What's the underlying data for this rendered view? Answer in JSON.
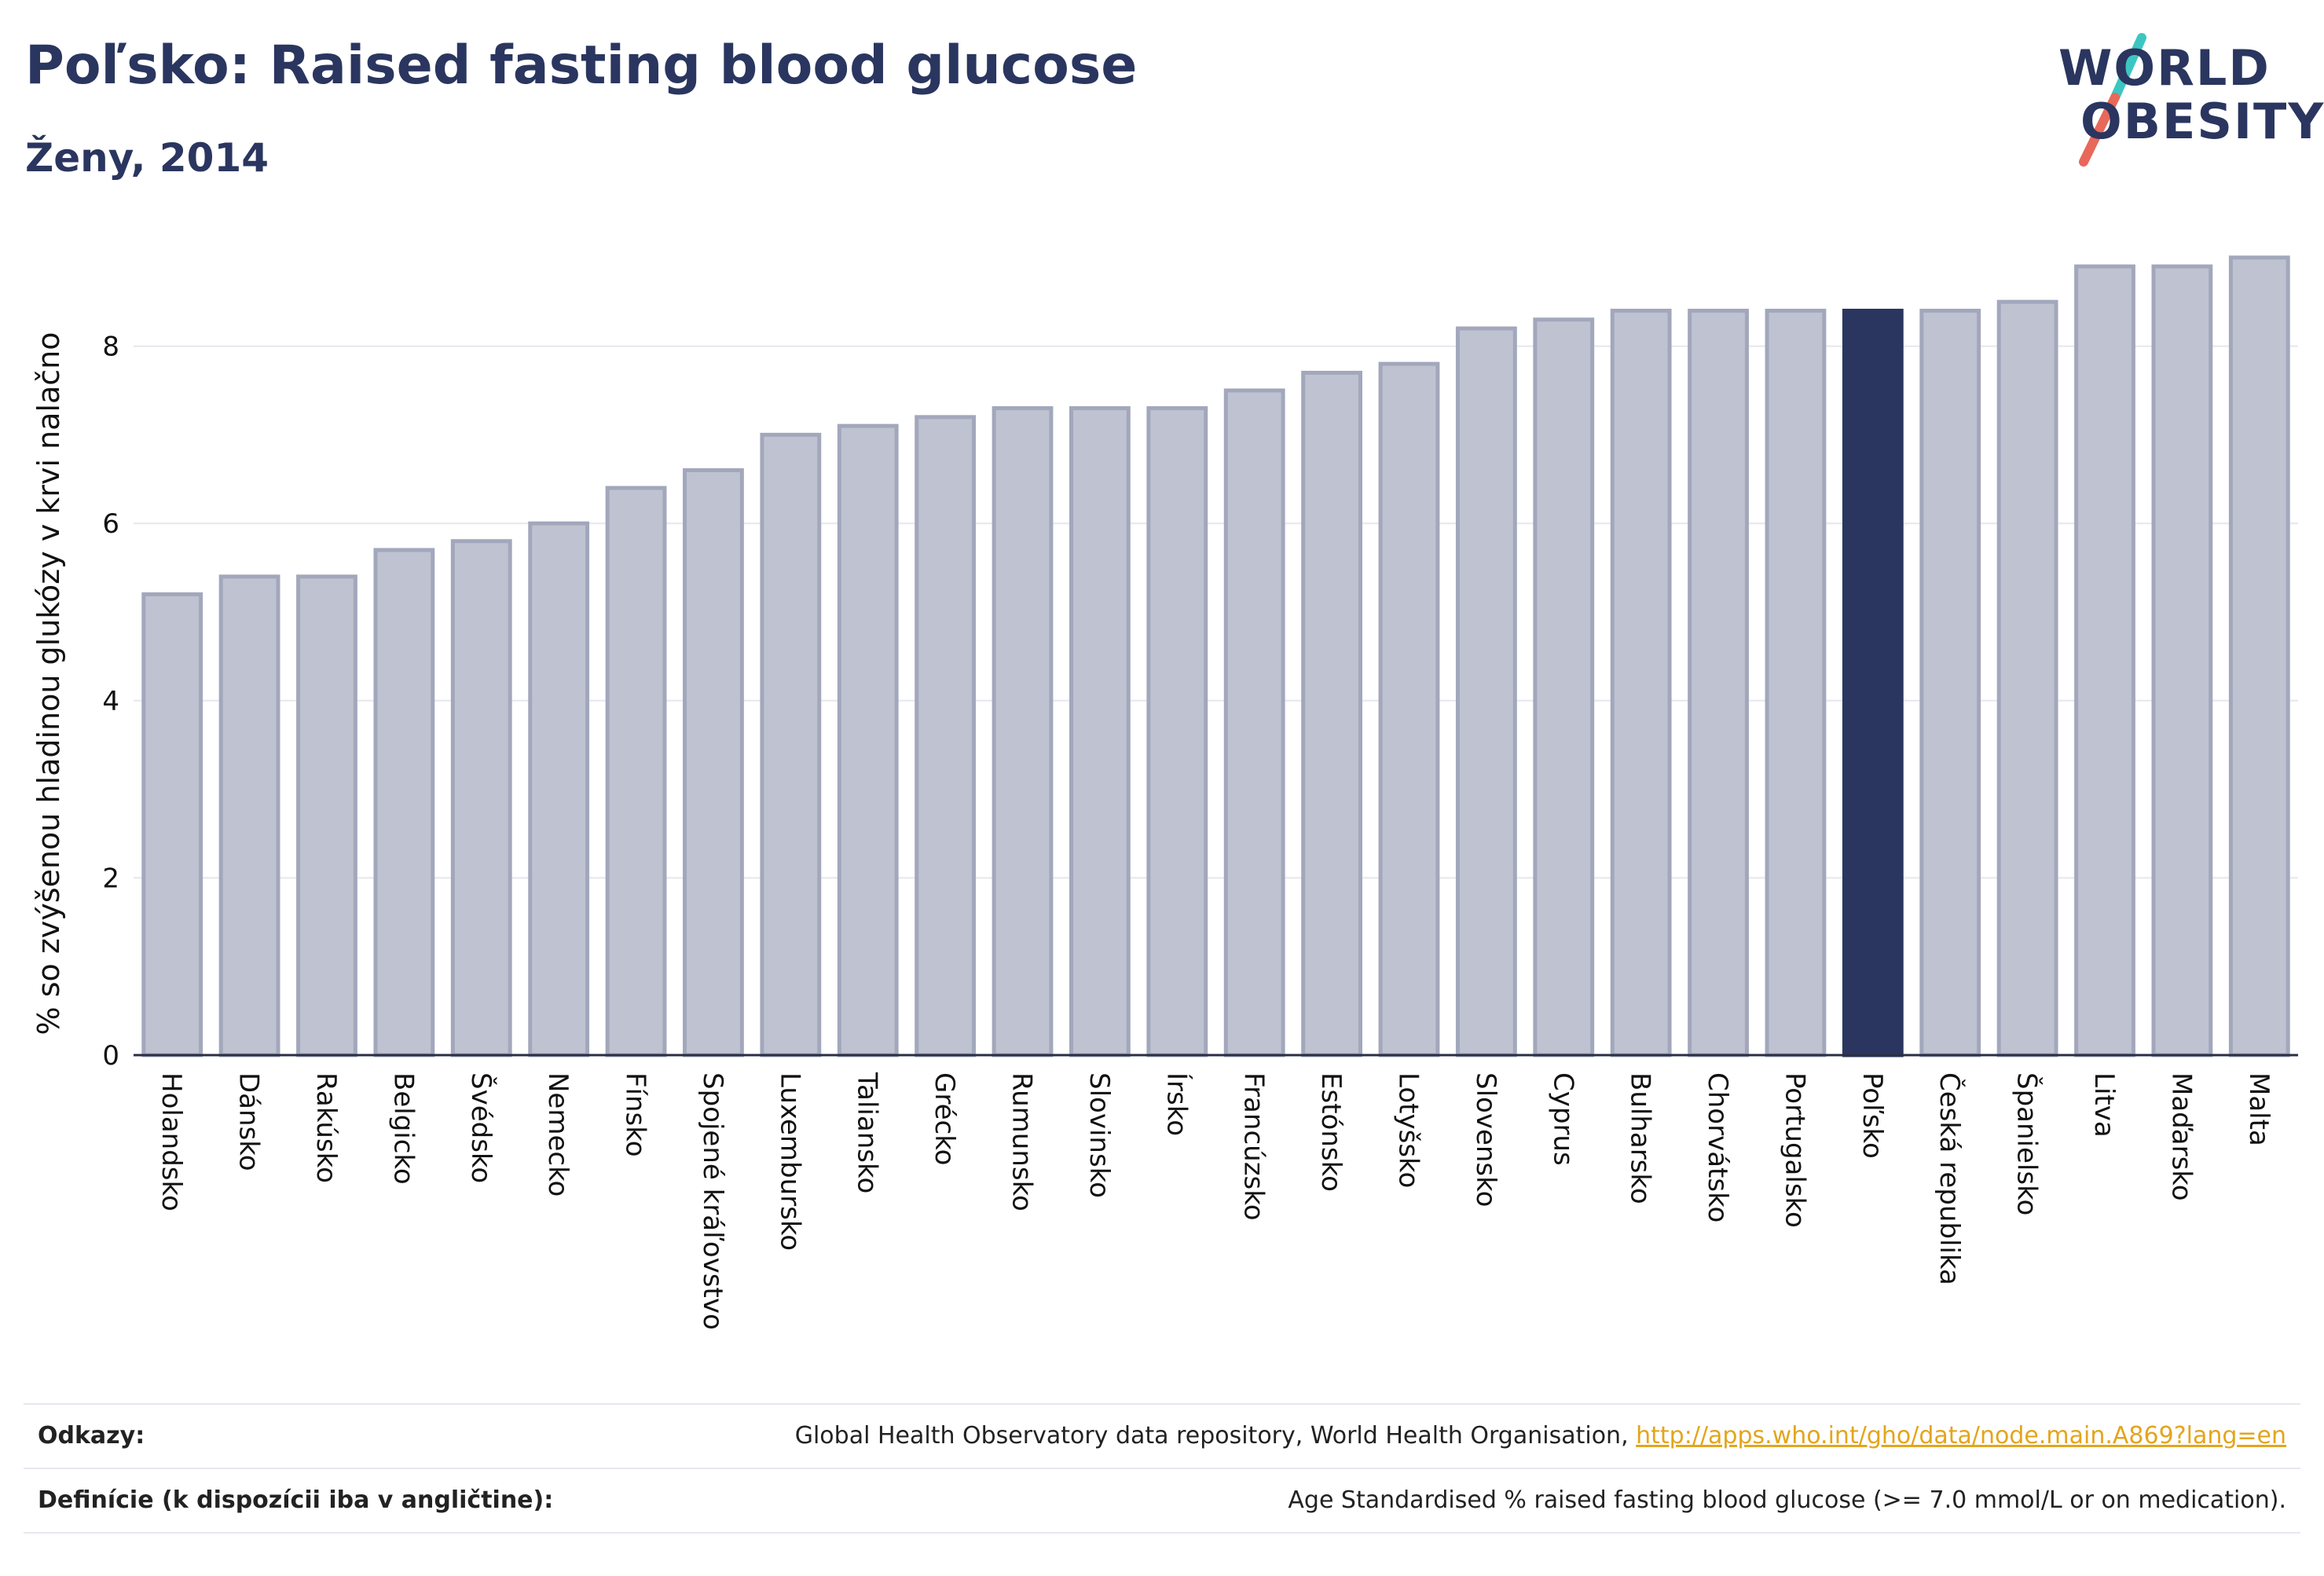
{
  "header": {
    "title": "Poľsko: Raised fasting blood glucose",
    "subtitle": "Ženy, 2014"
  },
  "logo": {
    "line1": "WORLD",
    "line2": "OBESITY",
    "colors": {
      "text": "#2a365f",
      "slash_top": "#3cc6c1",
      "slash_bottom": "#e8685a"
    }
  },
  "colors": {
    "bar_default": "#bfc2d0",
    "bar_border": "#a2a7bc",
    "bar_highlight": "#2a365f",
    "grid": "#e5e7ee",
    "axis": "#2a2f45"
  },
  "chart_data": {
    "type": "bar",
    "title": "Poľsko: Raised fasting blood glucose",
    "subtitle": "Ženy, 2014",
    "xlabel": "",
    "ylabel": "% so zvýšenou hladinou glukózy v krvi nalačno",
    "ylim": [
      0,
      9.2
    ],
    "yticks": [
      0,
      2,
      4,
      6,
      8
    ],
    "grid": true,
    "highlight": "Poľsko",
    "categories": [
      "Holandsko",
      "Dánsko",
      "Rakúsko",
      "Belgicko",
      "Švédsko",
      "Nemecko",
      "Fínsko",
      "Spojené kráľovstvo",
      "Luxembursko",
      "Taliansko",
      "Grécko",
      "Rumunsko",
      "Slovinsko",
      "Írsko",
      "Francúzsko",
      "Estónsko",
      "Lotyšsko",
      "Slovensko",
      "Cyprus",
      "Bulharsko",
      "Chorvátsko",
      "Portugalsko",
      "Poľsko",
      "Česká republika",
      "Španielsko",
      "Litva",
      "Maďarsko",
      "Malta"
    ],
    "values": [
      5.2,
      5.4,
      5.4,
      5.7,
      5.8,
      6.0,
      6.4,
      6.6,
      7.0,
      7.1,
      7.2,
      7.3,
      7.3,
      7.3,
      7.5,
      7.7,
      7.8,
      8.2,
      8.3,
      8.4,
      8.4,
      8.4,
      8.4,
      8.4,
      8.5,
      8.9,
      8.9,
      9.0
    ]
  },
  "footer": {
    "references_label": "Odkazy:",
    "references_text": "Global Health Observatory data repository, World Health Organisation, ",
    "references_link": "http://apps.who.int/gho/data/node.main.A869?lang=en",
    "definitions_label": "Definície (k dispozícii iba v angličtine):",
    "definitions_text": "Age Standardised % raised fasting blood glucose (>= 7.0 mmol/L or on medication)."
  }
}
